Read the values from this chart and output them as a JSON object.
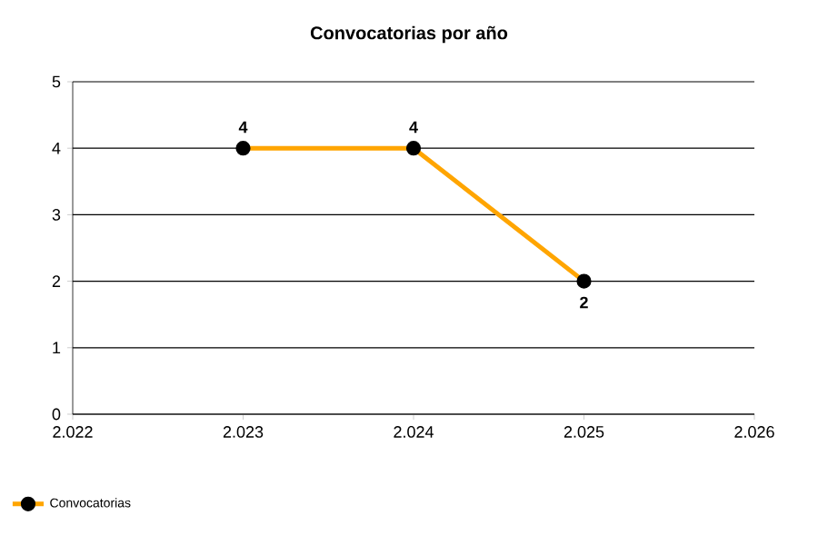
{
  "chart_data": {
    "type": "line",
    "title": "Convocatorias por año",
    "x": [
      2023,
      2024,
      2025
    ],
    "series": [
      {
        "name": "Convocatorias",
        "color": "#ffa500",
        "values": [
          4,
          4,
          2
        ]
      }
    ],
    "xlim": [
      2022,
      2026
    ],
    "xticks": [
      {
        "value": 2022,
        "label": "2.022"
      },
      {
        "value": 2023,
        "label": "2.023"
      },
      {
        "value": 2024,
        "label": "2.024"
      },
      {
        "value": 2025,
        "label": "2.025"
      },
      {
        "value": 2026,
        "label": "2.026"
      }
    ],
    "ylim": [
      0,
      5
    ],
    "yticks": [
      0,
      1,
      2,
      3,
      4,
      5
    ],
    "grid": "y",
    "legend": "bottom left",
    "marker": "circle",
    "line_style": "solid",
    "data_labels": true
  }
}
